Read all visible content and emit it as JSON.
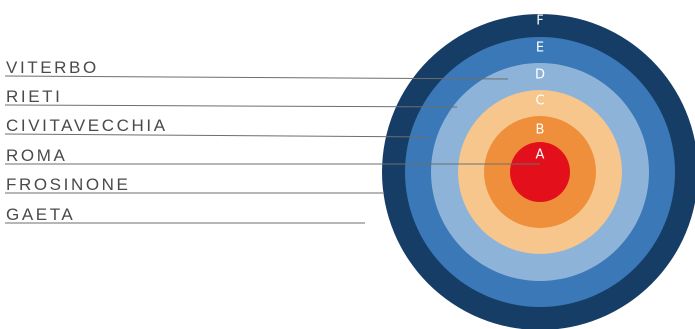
{
  "rings": [
    {
      "letter": "F",
      "color": "#163d66",
      "letter_color": "#ffffff"
    },
    {
      "letter": "E",
      "color": "#3a78b8",
      "letter_color": "#ffffff"
    },
    {
      "letter": "D",
      "color": "#8db3d8",
      "letter_color": "#ffffff"
    },
    {
      "letter": "C",
      "color": "#f6c68c",
      "letter_color": "#ffffff"
    },
    {
      "letter": "B",
      "color": "#ef8f3b",
      "letter_color": "#ffffff"
    },
    {
      "letter": "A",
      "color": "#e3101c",
      "letter_color": "#ffffff"
    }
  ],
  "cities": [
    {
      "name": "VITERBO"
    },
    {
      "name": "RIETI"
    },
    {
      "name": "CIVITAVECCHIA"
    },
    {
      "name": "ROMA"
    },
    {
      "name": "FROSINONE"
    },
    {
      "name": "GAETA"
    }
  ],
  "line_color": "#6e6e6e",
  "text_color": "#4a4a4a"
}
